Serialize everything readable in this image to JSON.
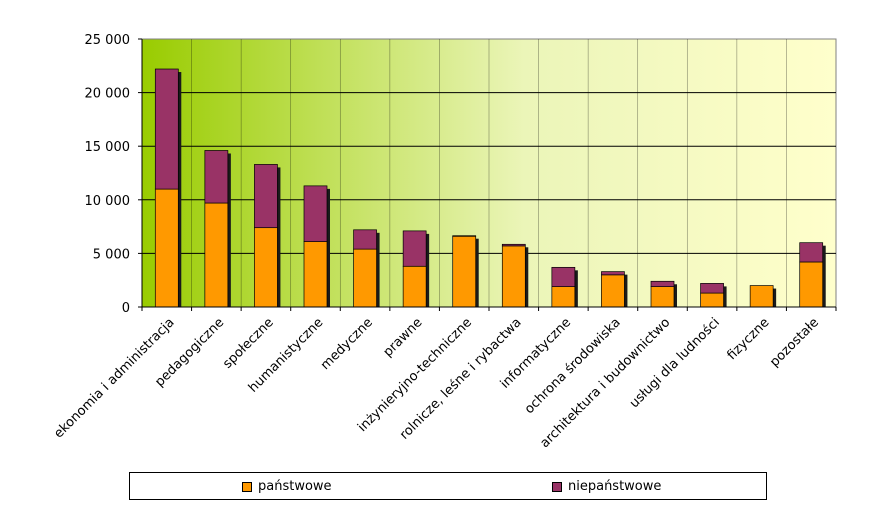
{
  "chart_data": {
    "type": "bar",
    "stacked": true,
    "categories": [
      "ekonomia i administracja",
      "pedagogiczne",
      "społeczne",
      "humanistyczne",
      "medyczne",
      "prawne",
      "inżynieryjno-techniczne",
      "rolnicze, leśne i rybactwa",
      "informatyczne",
      "ochrona środowiska",
      "architektura i budownictwo",
      "usługi dla ludności",
      "fizyczne",
      "pozostałe"
    ],
    "series": [
      {
        "name": "państwowe",
        "color": "#ff9900",
        "values": [
          11000,
          9700,
          7400,
          6100,
          5400,
          3800,
          6600,
          5700,
          1900,
          3000,
          1900,
          1300,
          2000,
          4200
        ]
      },
      {
        "name": "niepaństwowe",
        "color": "#993366",
        "values": [
          11200,
          4900,
          5900,
          5200,
          1800,
          3300,
          50,
          150,
          1800,
          300,
          500,
          900,
          0,
          1800
        ]
      }
    ],
    "ylim": [
      0,
      25000
    ],
    "yticks": [
      "0",
      "5 000",
      "10 000",
      "15 000",
      "20 000",
      "25 000"
    ],
    "grid": true,
    "legend_position": "bottom",
    "background_gradient": [
      "#99cc00",
      "#ffffcc"
    ]
  }
}
